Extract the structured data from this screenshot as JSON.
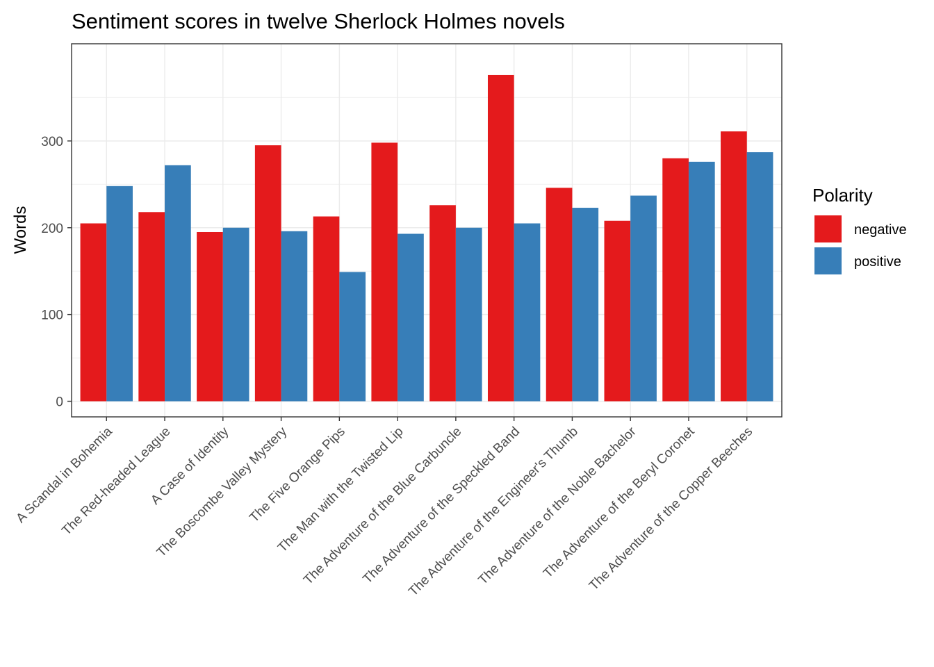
{
  "chart_data": {
    "type": "bar",
    "title": "Sentiment scores in twelve Sherlock Holmes novels",
    "xlabel": "",
    "ylabel": "Words",
    "ylim": [
      -18,
      412
    ],
    "yticks": [
      0,
      100,
      200,
      300
    ],
    "grid": true,
    "legend": {
      "title": "Polarity",
      "placement": "right"
    },
    "categories": [
      "A Scandal in Bohemia",
      "The Red-headed League",
      "A Case of Identity",
      "The Boscombe Valley Mystery",
      "The Five Orange Pips",
      "The Man with the Twisted Lip",
      "The Adventure of the Blue Carbuncle",
      "The Adventure of the Speckled Band",
      "The Adventure of the Engineer's Thumb",
      "The Adventure of the Noble Bachelor",
      "The Adventure of the Beryl Coronet",
      "The Adventure of the Copper Beeches"
    ],
    "series": [
      {
        "name": "negative",
        "color": "#e41a1c",
        "values": [
          205,
          218,
          195,
          295,
          213,
          298,
          226,
          376,
          246,
          208,
          280,
          311
        ]
      },
      {
        "name": "positive",
        "color": "#377eb8",
        "values": [
          248,
          272,
          200,
          196,
          149,
          193,
          200,
          205,
          223,
          237,
          276,
          287
        ]
      }
    ]
  }
}
